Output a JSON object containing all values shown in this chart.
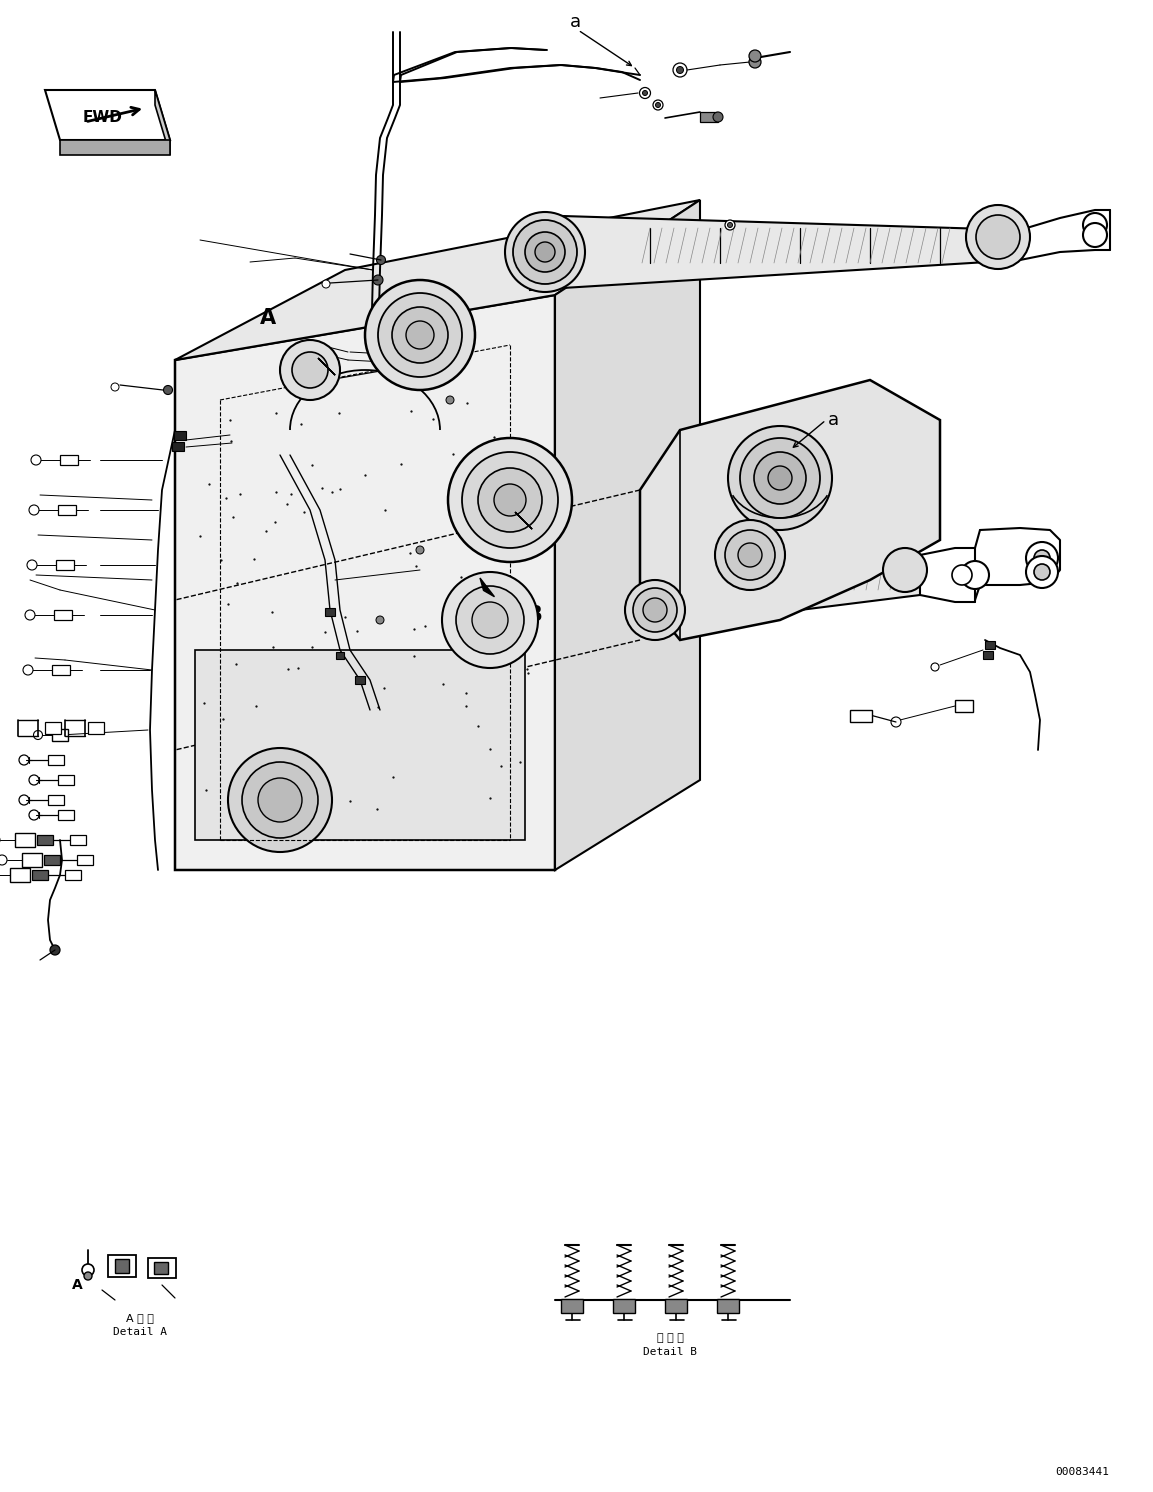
{
  "fig_width": 11.53,
  "fig_height": 14.92,
  "dpi": 100,
  "bg_color": "#ffffff",
  "line_color": "#000000",
  "title_id": "00083441",
  "fwd_label": "FWD",
  "detail_a_jp": "A詳細",
  "detail_a_en": "Detail A",
  "detail_b_jp": "日詳細",
  "detail_b_en": "Detail B",
  "lw_main": 1.3,
  "lw_thin": 0.7,
  "lw_thick": 2.0
}
